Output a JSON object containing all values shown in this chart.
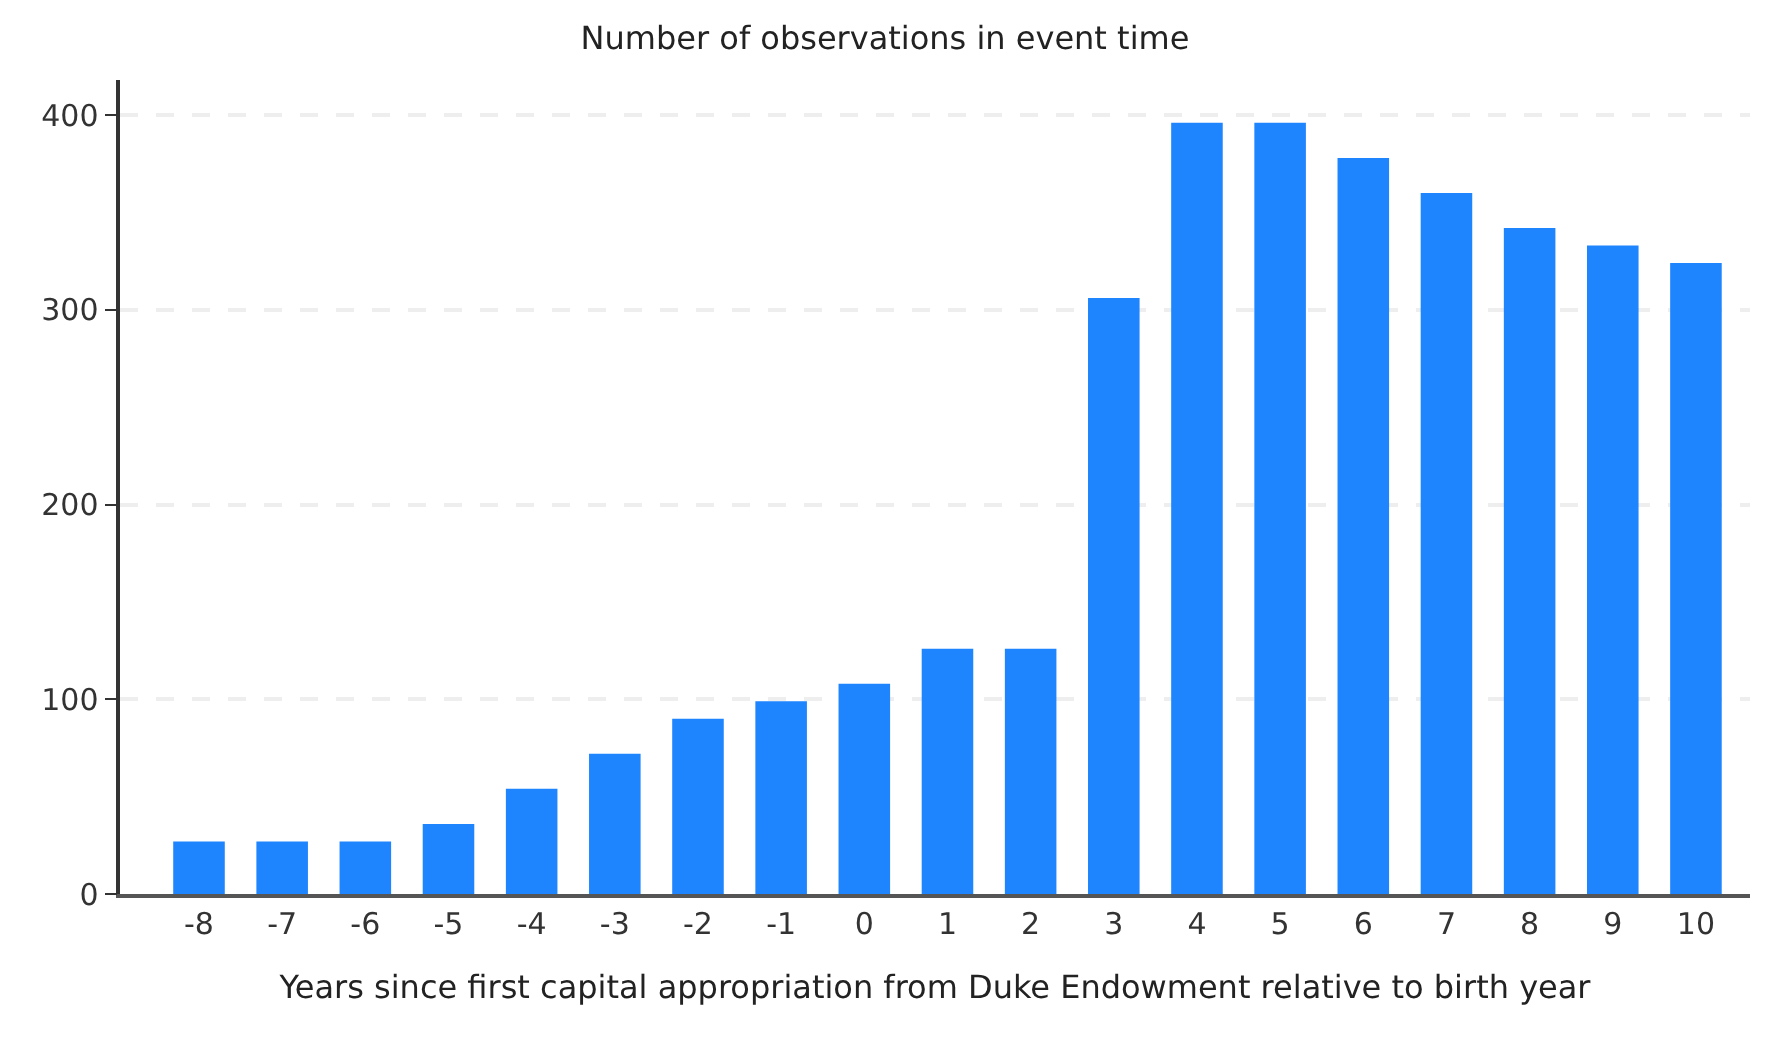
{
  "chart_data": {
    "type": "bar",
    "title": "Number of observations in event time",
    "xlabel": "Years since first capital appropriation from Duke Endowment relative to birth year",
    "categories": [
      "-8",
      "-7",
      "-6",
      "-5",
      "-4",
      "-3",
      "-2",
      "-1",
      "0",
      "1",
      "2",
      "3",
      "4",
      "5",
      "6",
      "7",
      "8",
      "9",
      "10"
    ],
    "values": [
      27,
      27,
      27,
      36,
      54,
      72,
      90,
      99,
      108,
      126,
      126,
      306,
      396,
      396,
      378,
      360,
      342,
      333,
      324
    ],
    "color": "#1e85ff",
    "ylim": [
      0,
      418
    ],
    "yticks": [
      0,
      100,
      200,
      300,
      400
    ],
    "grid": "y"
  }
}
